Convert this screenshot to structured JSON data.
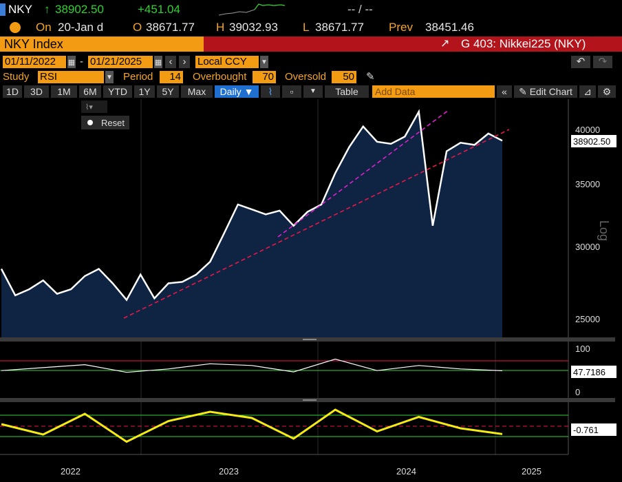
{
  "ticker_row": {
    "symbol": "NKY",
    "arrow": "↑",
    "last": "38902.50",
    "change": "+451.04",
    "bid_ask": "-- / --"
  },
  "quote_row": {
    "on_label": "On",
    "date": "20-Jan d",
    "open_label": "O",
    "open": "38671.77",
    "high_label": "H",
    "high": "39032.93",
    "low_label": "L",
    "low": "38671.77",
    "prev_label": "Prev",
    "prev": "38451.46"
  },
  "title_row": {
    "security": "NKY Index",
    "function": "G 403: Nikkei225 (NKY)"
  },
  "date_row": {
    "start": "01/11/2022",
    "sep": "-",
    "end": "01/21/2025",
    "currency": "Local CCY"
  },
  "study_row": {
    "study_label": "Study",
    "study_value": "RSI",
    "period_label": "Period",
    "period_value": "14",
    "overbought_label": "Overbought",
    "overbought_value": "70",
    "oversold_label": "Oversold",
    "oversold_value": "50"
  },
  "toolbar": {
    "ranges": [
      "1D",
      "3D",
      "1M",
      "6M",
      "YTD",
      "1Y",
      "5Y",
      "Max"
    ],
    "frequency": "Daily ▼",
    "table_label": "Table",
    "add_data_placeholder": "Add Data",
    "edit_chart": "Edit Chart",
    "reset": "Reset"
  },
  "colors": {
    "accent_orange": "#f39b12",
    "header_red": "#b3131b",
    "price_green": "#2fd22f",
    "area_fill": "#0e2442",
    "trend_red": "#e8184a",
    "trend_magenta": "#e020d0",
    "rsi_yellow": "#f3ea17"
  },
  "chart_data": [
    {
      "type": "area",
      "scale": "log",
      "ylabel": "Log",
      "y_ticks": [
        "25000",
        "30000",
        "35000",
        "40000"
      ],
      "x_ticks": [
        "2022",
        "2023",
        "2024",
        "2025"
      ],
      "last_value_label": "38902.50",
      "series": [
        {
          "x": [
            "2022-01",
            "2022-02",
            "2022-03",
            "2022-04",
            "2022-05",
            "2022-06",
            "2022-07",
            "2022-08",
            "2022-09",
            "2022-10",
            "2022-11",
            "2022-12",
            "2023-01",
            "2023-02",
            "2023-03",
            "2023-04",
            "2023-05",
            "2023-06",
            "2023-07",
            "2023-08",
            "2023-09",
            "2023-10",
            "2023-11",
            "2023-12",
            "2024-01",
            "2024-02",
            "2024-03",
            "2024-04",
            "2024-05",
            "2024-06",
            "2024-07",
            "2024-08",
            "2024-09",
            "2024-10",
            "2024-11",
            "2024-12",
            "2025-01"
          ],
          "y": [
            28300,
            26500,
            26900,
            27500,
            26600,
            26900,
            27800,
            28300,
            27300,
            26200,
            27900,
            26300,
            27300,
            27400,
            27900,
            28800,
            30900,
            33200,
            32800,
            32400,
            32700,
            31500,
            32600,
            33200,
            35900,
            38300,
            40300,
            38800,
            38600,
            39300,
            41800,
            31500,
            37900,
            38700,
            38500,
            39600,
            38903
          ]
        }
      ]
    },
    {
      "type": "line",
      "title": "RSI",
      "y_ticks": [
        "100",
        "0"
      ],
      "last_value_label": "47.7186",
      "reference_lines": [
        70,
        50
      ],
      "series": [
        {
          "x": [
            "2022-01",
            "2022-04",
            "2022-07",
            "2022-10",
            "2023-01",
            "2023-04",
            "2023-07",
            "2023-10",
            "2024-01",
            "2024-04",
            "2024-07",
            "2024-10",
            "2025-01"
          ],
          "y": [
            48,
            55,
            62,
            44,
            52,
            64,
            60,
            45,
            75,
            48,
            60,
            52,
            47.7186
          ]
        }
      ]
    },
    {
      "type": "line",
      "last_value_label": "-0.761",
      "series": [
        {
          "x": [
            "2022-01",
            "2022-04",
            "2022-07",
            "2022-10",
            "2023-01",
            "2023-04",
            "2023-07",
            "2023-10",
            "2024-01",
            "2024-04",
            "2024-07",
            "2024-10",
            "2025-01"
          ],
          "y": [
            0.2,
            -0.8,
            1.2,
            -1.5,
            0.5,
            1.4,
            0.8,
            -1.2,
            1.6,
            -0.5,
            0.9,
            -0.2,
            -0.761
          ]
        }
      ]
    }
  ]
}
